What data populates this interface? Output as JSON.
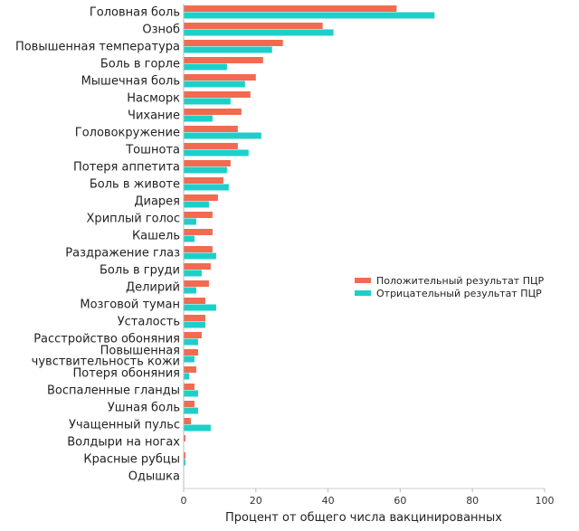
{
  "chart_data": {
    "type": "bar",
    "orientation": "horizontal",
    "title": "",
    "xlabel": "Процент от общего числа вакцинированных",
    "ylabel": "",
    "xlim": [
      0,
      100
    ],
    "xticks": [
      0,
      20,
      40,
      60,
      80,
      100
    ],
    "grid": false,
    "legend_position": "right",
    "categories": [
      "Головная боль",
      "Озноб",
      "Повышенная температура",
      "Боль в горле",
      "Мышечная боль",
      "Насморк",
      "Чихание",
      "Головокружение",
      "Тошнота",
      "Потеря аппетита",
      "Боль в животе",
      "Диарея",
      "Хриплый голос",
      "Кашель",
      "Раздражение глаз",
      "Боль в груди",
      "Делирий",
      "Мозговой туман",
      "Усталость",
      "Расстройство обоняния",
      "Повышенная чувствительность кожи",
      "Потеря обоняния",
      "Воспаленные гланды",
      "Ушная боль",
      "Учащенный пульс",
      "Волдыри на ногах",
      "Красные рубцы",
      "Одышка"
    ],
    "series": [
      {
        "name": "Положительный результат ПЦР",
        "color": "#f26a50",
        "values": [
          59,
          38.5,
          27.5,
          22,
          20,
          18.5,
          16,
          15,
          15,
          13,
          11,
          9.5,
          8,
          8,
          8,
          7.5,
          7,
          6,
          6,
          5,
          4,
          3.5,
          3,
          3,
          2,
          0.5,
          0.5,
          0
        ]
      },
      {
        "name": "Отрицательный результат ПЦР",
        "color": "#1ecfc9",
        "values": [
          69.5,
          41.5,
          24.5,
          12,
          17,
          13,
          8,
          21.5,
          18,
          12,
          12.5,
          7,
          3.5,
          3,
          9,
          5,
          3.5,
          9,
          6,
          4,
          3,
          1.5,
          4,
          4,
          7.5,
          0,
          0.5,
          0
        ]
      }
    ]
  }
}
